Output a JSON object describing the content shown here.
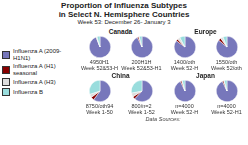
{
  "title": "Proportion of Influenza Subtypes\nin Select N. Hemisphere Countries",
  "subtitle": "Week 53: December 26- January 3",
  "annotations": [
    "Data Sources:"
  ],
  "legend": "left",
  "chart_data": [
    {
      "type": "pie",
      "title": "Canada",
      "categories": [
        "Influenza A (2009-\nH1N1)",
        "Influenza A (H1)\nseasonal",
        "Influenza A (H3)",
        "Influenza B"
      ],
      "colors": [
        "#7777bb",
        "#880000",
        "#dddddd",
        "#99dddd"
      ],
      "series": [
        {
          "name": "4950H1\nWeek 52&53-H",
          "values": [
            0.94,
            0.005,
            0.01,
            0.045
          ]
        },
        {
          "name": "200H1H\nWeek 52&53-H1",
          "values": [
            0.93,
            0.02,
            0.01,
            0.04
          ]
        }
      ]
    },
    {
      "type": "pie",
      "title": "Europe",
      "categories": [
        "Influenza A (2009-\nH1N1)",
        "Influenza A (H1)\nseasonal",
        "Influenza A (H3)",
        "Influenza B"
      ],
      "colors": [
        "#7777bb",
        "#880000",
        "#dddddd",
        "#99dddd"
      ],
      "series": [
        {
          "name": "1400/oth\nWeek 52-H",
          "values": [
            0.85,
            0.03,
            0.04,
            0.08
          ]
        },
        {
          "name": "1550/oth\nWeek 52/oth",
          "values": [
            0.86,
            0.04,
            0.04,
            0.06
          ]
        }
      ]
    },
    {
      "type": "pie",
      "title": "China",
      "categories": [
        "Influenza A (2009-\nH1N1)",
        "Influenza A (H1)\nseasonal",
        "Influenza A (H3)",
        "Influenza B"
      ],
      "colors": [
        "#7777bb",
        "#880000",
        "#dddddd",
        "#99dddd"
      ],
      "series": [
        {
          "name": "8750/oth94\nWeek 1-50",
          "values": [
            0.6,
            0.05,
            0.05,
            0.3
          ]
        },
        {
          "name": "800/n=2\nWeek 1-52",
          "values": [
            0.62,
            0.04,
            0.06,
            0.28
          ]
        }
      ]
    },
    {
      "type": "pie",
      "title": "Japan",
      "categories": [
        "Influenza A (2009-\nH1N1)",
        "Influenza A (H1)\nseasonal",
        "Influenza A (H3)",
        "Influenza B"
      ],
      "colors": [
        "#7777bb",
        "#880000",
        "#dddddd",
        "#99dddd"
      ],
      "series": [
        {
          "name": "n=4000\nWeek 52-H",
          "values": [
            0.93,
            0.02,
            0.01,
            0.04
          ]
        },
        {
          "name": "n=4000\nWeek 52-H1",
          "values": [
            0.93,
            0.02,
            0.01,
            0.04
          ]
        }
      ]
    }
  ]
}
